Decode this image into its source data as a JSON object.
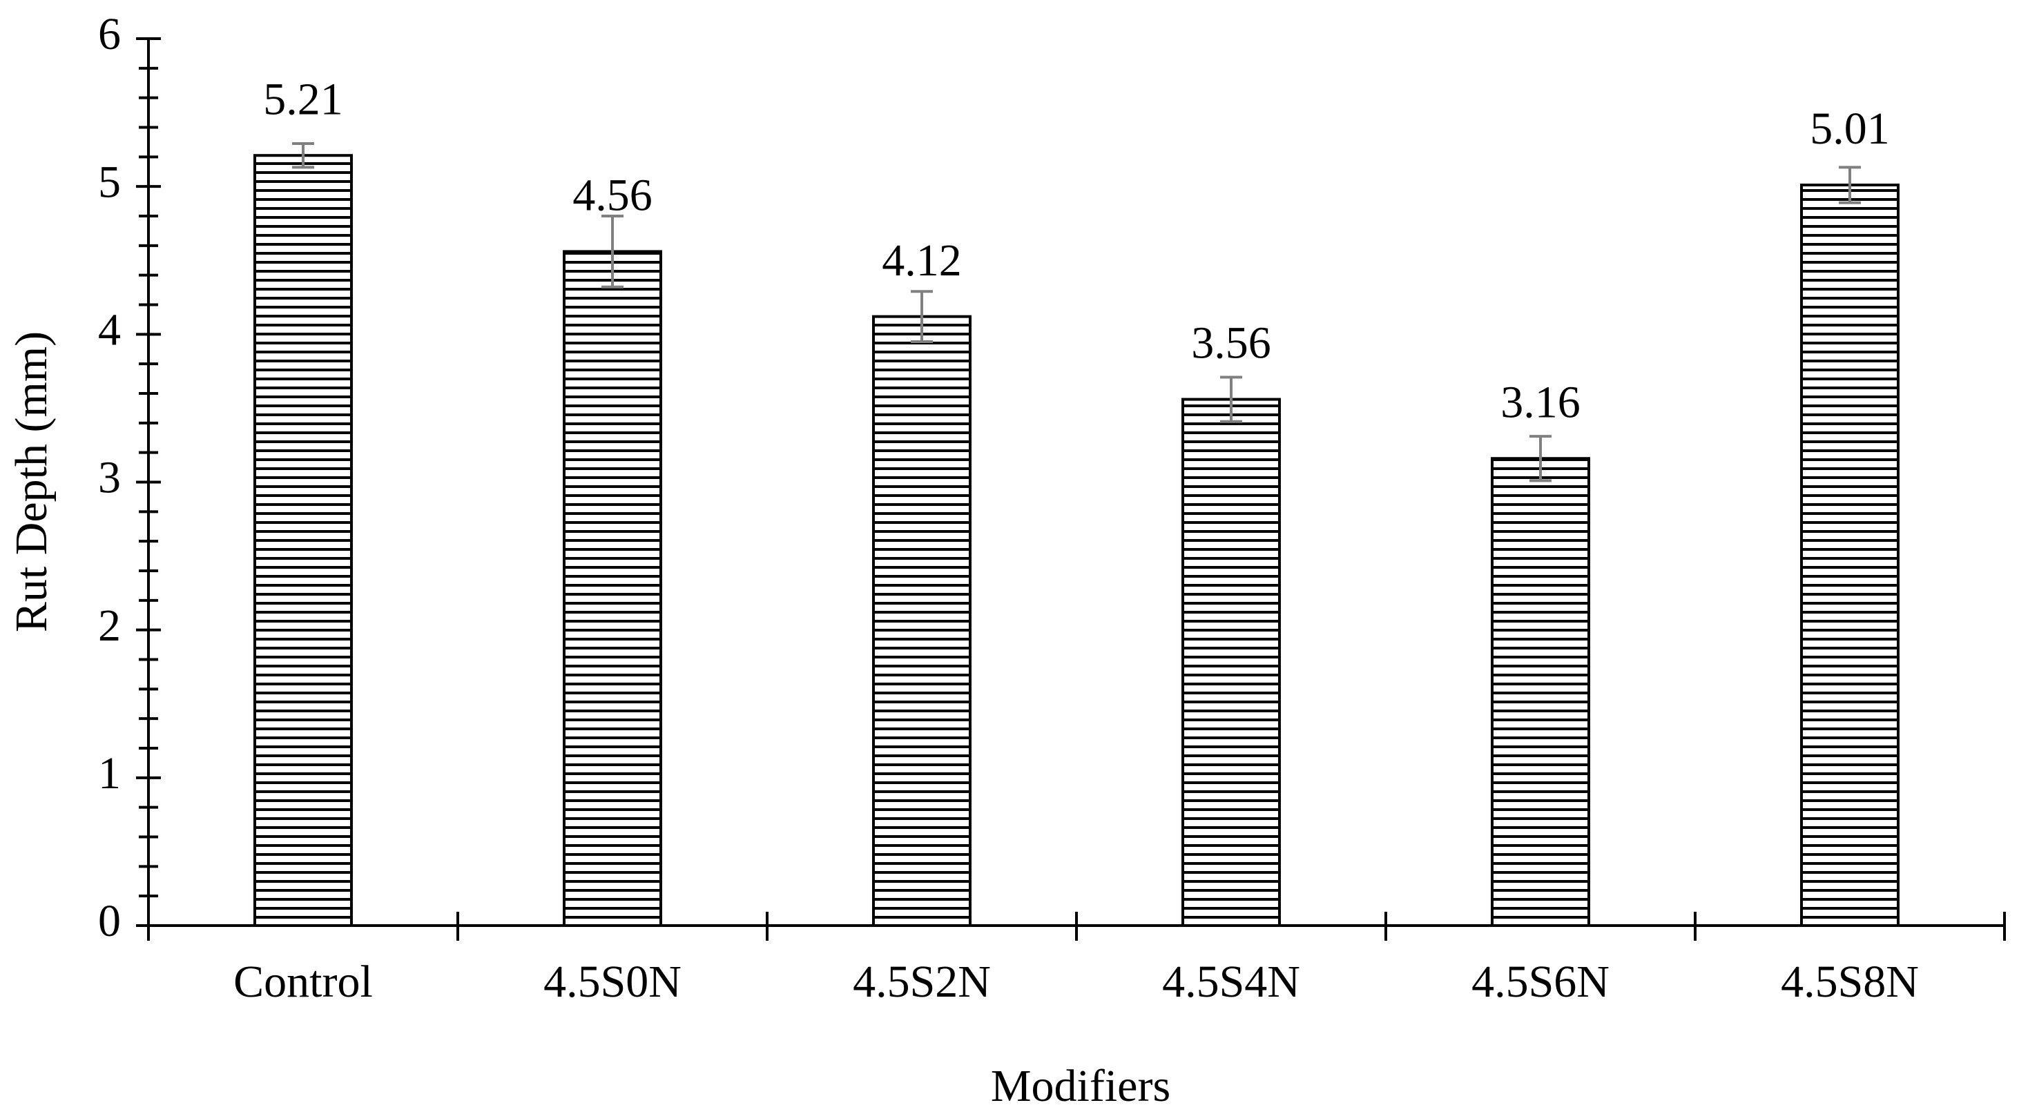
{
  "chart_data": {
    "type": "bar",
    "x_label": "Modifiers",
    "y_label": "Rut Depth (mm)",
    "categories": [
      "Control",
      "4.5S0N",
      "4.5S2N",
      "4.5S4N",
      "4.5S6N",
      "4.5S8N"
    ],
    "values": [
      5.21,
      4.56,
      4.12,
      3.56,
      3.16,
      5.01
    ],
    "errors": [
      0.08,
      0.24,
      0.17,
      0.15,
      0.15,
      0.12
    ],
    "color": "#000000",
    "error_color": "#808080",
    "ylim": [
      0,
      6
    ],
    "yticks": [
      0,
      1,
      2,
      3,
      4,
      5,
      6
    ],
    "yminorticks": [
      0.2,
      0.4,
      0.6,
      0.8,
      1.2,
      1.4,
      1.6,
      1.8,
      2.2,
      2.4,
      2.6,
      2.8,
      3.2,
      3.4,
      3.6,
      3.8,
      4.2,
      4.4,
      4.6,
      4.8,
      5.2,
      5.4,
      5.6,
      5.8
    ],
    "grid": false
  }
}
